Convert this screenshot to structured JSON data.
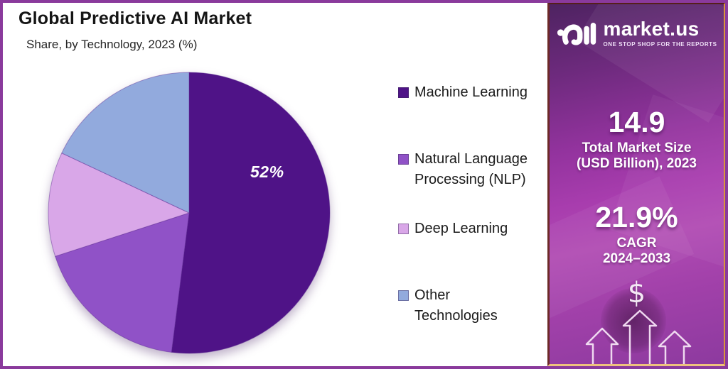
{
  "chart": {
    "title": "Global Predictive AI Market",
    "subtitle": "Share, by Technology, 2023 (%)"
  },
  "chart_data": {
    "type": "pie",
    "title": "Global Predictive AI Market",
    "subtitle": "Share, by Technology, 2023 (%)",
    "labels": [
      "Machine Learning",
      "Natural Language Processing (NLP)",
      "Deep Learning",
      "Other Technologies"
    ],
    "values": [
      52,
      18,
      12,
      18
    ],
    "colors": [
      "#4f1387",
      "#9052c7",
      "#d9a7e8",
      "#92aadd"
    ],
    "start_angle_deg": -90,
    "direction": "clockwise",
    "legend_position": "right",
    "shown_data_label": {
      "slice": "Machine Learning",
      "text": "52%"
    }
  },
  "legend": {
    "items": [
      {
        "label": "Machine Learning",
        "color": "#4f1387"
      },
      {
        "label": "Natural Language\nProcessing (NLP)",
        "color": "#9052c7"
      },
      {
        "label": "Deep Learning",
        "color": "#d9a7e8"
      },
      {
        "label": "Other\nTechnologies",
        "color": "#92aadd"
      }
    ]
  },
  "sidebar": {
    "logo": {
      "name": "market.us",
      "tagline": "ONE STOP SHOP FOR THE REPORTS"
    },
    "stats": [
      {
        "value": "14.9",
        "label": "Total Market Size\n(USD Billion), 2023"
      },
      {
        "value": "21.9%",
        "label": "CAGR\n2024–2033"
      }
    ],
    "dollar_icon": "$",
    "accent_colors": {
      "frame_purple": "#8a3a9c",
      "sidebar_gold_border": "#d9973c",
      "sidebar_background_mid": "#a83dae"
    }
  }
}
